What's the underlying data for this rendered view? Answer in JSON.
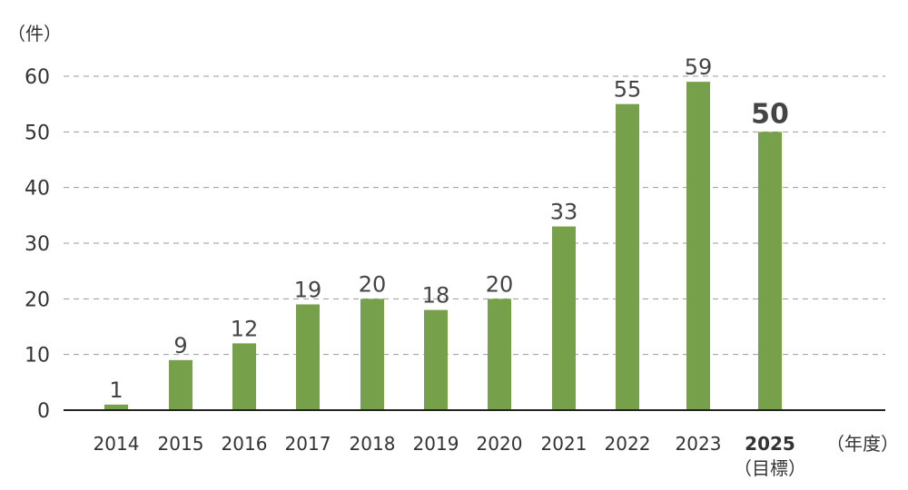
{
  "chart_data": {
    "type": "bar",
    "title": "",
    "ylabel": "（件）",
    "xlabel": "（年度）",
    "categories": [
      "2014",
      "2015",
      "2016",
      "2017",
      "2018",
      "2019",
      "2020",
      "2021",
      "2022",
      "2023",
      "2025"
    ],
    "category_sublabels": [
      "",
      "",
      "",
      "",
      "",
      "",
      "",
      "",
      "",
      "",
      "（目標）"
    ],
    "values": [
      1,
      9,
      12,
      19,
      20,
      18,
      20,
      33,
      55,
      59,
      50
    ],
    "emphasized_categories": [
      "2025"
    ],
    "ylim": [
      0,
      60
    ],
    "yticks": [
      0,
      10,
      20,
      30,
      40,
      50,
      60
    ],
    "grid": true,
    "bar_color": "#76a04a",
    "legend": "none"
  }
}
